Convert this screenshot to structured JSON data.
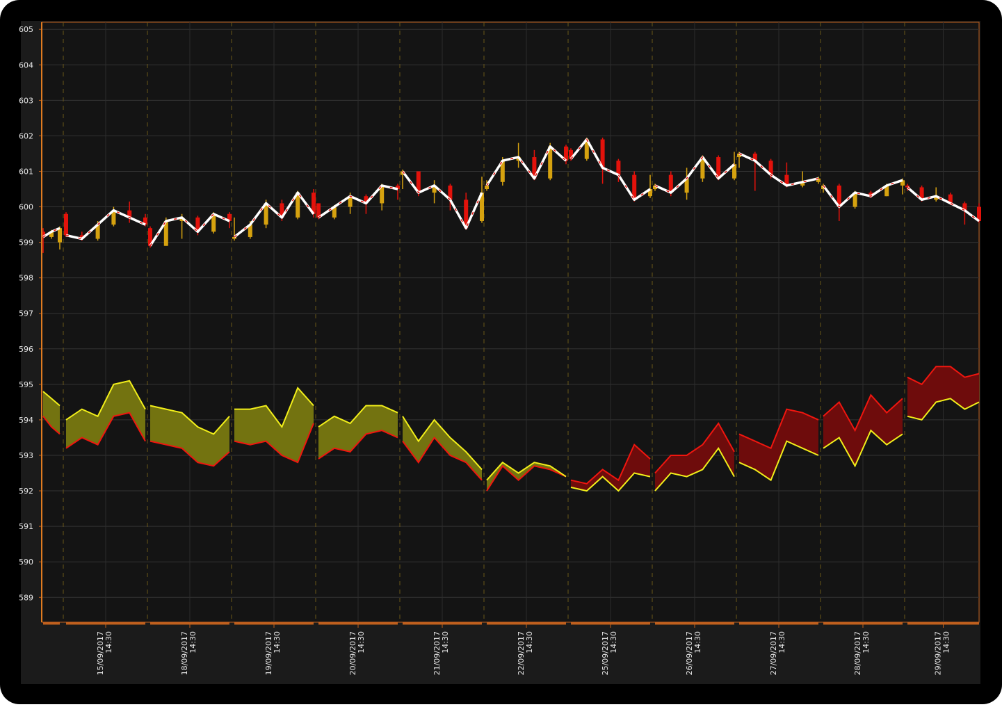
{
  "chart_data": {
    "type": "candlestick",
    "ylim": [
      588.3,
      605.2
    ],
    "yticks": [
      589,
      590,
      591,
      592,
      593,
      594,
      595,
      596,
      597,
      598,
      599,
      600,
      601,
      602,
      603,
      604,
      605
    ],
    "grid": true,
    "colors": {
      "up": "#d6a20f",
      "down": "#e3120b",
      "close_line": "#ffffff",
      "close_dash": "#e3120b",
      "band_line_1": "#f2ef1a",
      "band_line_2": "#f0160f",
      "band_fill_1_above": "#737310",
      "band_fill_2_above": "#6e0c0c"
    },
    "sessions": [
      {
        "label": null,
        "open": [
          599.3,
          599.15,
          599.0
        ],
        "high": [
          599.4,
          599.35,
          599.45
        ],
        "low": [
          598.7,
          599.1,
          598.8
        ],
        "close": [
          599.15,
          599.3,
          599.4
        ],
        "band_1": [
          594.8,
          594.6,
          594.4
        ],
        "band_2": [
          594.1,
          593.8,
          593.6
        ]
      },
      {
        "label": [
          "15/09/2017",
          "14:30"
        ],
        "open": [
          599.8,
          599.2,
          599.1,
          599.5,
          599.9,
          599.7
        ],
        "high": [
          599.85,
          599.3,
          599.6,
          600.0,
          600.15,
          599.8
        ],
        "low": [
          599.15,
          599.05,
          599.05,
          599.45,
          599.55,
          599.45
        ],
        "close": [
          599.2,
          599.1,
          599.5,
          599.9,
          599.7,
          599.5
        ],
        "band_1": [
          594.0,
          594.3,
          594.1,
          595.0,
          595.1,
          594.3
        ],
        "band_2": [
          593.2,
          593.5,
          593.3,
          594.1,
          594.2,
          593.4
        ]
      },
      {
        "label": [
          "18/09/2017",
          "14:30"
        ],
        "open": [
          599.4,
          598.9,
          599.6,
          599.7,
          599.3,
          599.8
        ],
        "high": [
          599.45,
          599.7,
          599.8,
          599.75,
          599.85,
          599.85
        ],
        "low": [
          598.85,
          598.9,
          599.1,
          599.2,
          599.25,
          599.4
        ],
        "close": [
          598.9,
          599.6,
          599.7,
          599.3,
          599.8,
          599.6
        ],
        "band_1": [
          594.4,
          594.3,
          594.2,
          593.8,
          593.6,
          594.1
        ],
        "band_2": [
          593.4,
          593.3,
          593.2,
          592.8,
          592.7,
          593.1
        ]
      },
      {
        "label": [
          "19/09/2017",
          "14:30"
        ],
        "open": [
          599.1,
          599.15,
          599.5,
          600.1,
          599.7,
          600.4
        ],
        "high": [
          599.7,
          599.6,
          600.2,
          600.2,
          600.45,
          600.5
        ],
        "low": [
          599.05,
          599.1,
          599.4,
          599.6,
          599.65,
          599.7
        ],
        "close": [
          599.15,
          599.5,
          600.1,
          599.7,
          600.4,
          599.8
        ],
        "band_1": [
          594.3,
          594.3,
          594.4,
          593.8,
          594.9,
          594.4
        ],
        "band_2": [
          593.4,
          593.3,
          593.4,
          593.0,
          592.8,
          593.9
        ]
      },
      {
        "label": [
          "20/09/2017",
          "14:30"
        ],
        "open": [
          600.1,
          599.7,
          600.0,
          600.3,
          600.1,
          600.6
        ],
        "high": [
          600.1,
          600.05,
          600.4,
          600.35,
          600.65,
          600.65
        ],
        "low": [
          599.65,
          599.65,
          599.8,
          599.8,
          599.9,
          600.2
        ],
        "close": [
          599.7,
          600.0,
          600.3,
          600.1,
          600.6,
          600.5
        ],
        "band_1": [
          593.8,
          594.1,
          593.9,
          594.4,
          594.4,
          594.2
        ],
        "band_2": [
          592.9,
          593.2,
          593.1,
          593.6,
          593.7,
          593.5
        ]
      },
      {
        "label": [
          "21/09/2017",
          "14:30"
        ],
        "open": [
          600.9,
          601.0,
          600.4,
          600.6,
          600.2,
          599.6
        ],
        "high": [
          601.05,
          601.0,
          600.75,
          600.65,
          600.4,
          600.85
        ],
        "low": [
          600.5,
          600.3,
          600.1,
          599.9,
          599.35,
          599.55
        ],
        "close": [
          601.0,
          600.4,
          600.6,
          600.2,
          599.4,
          600.4
        ],
        "band_1": [
          594.1,
          593.4,
          594.0,
          593.5,
          593.1,
          592.6
        ],
        "band_2": [
          593.4,
          592.8,
          593.5,
          593.0,
          592.8,
          592.3
        ]
      },
      {
        "label": [
          "22/09/2017",
          "14:30"
        ],
        "open": [
          600.5,
          600.7,
          601.3,
          601.4,
          600.8,
          601.7
        ],
        "high": [
          600.75,
          601.4,
          601.8,
          601.6,
          601.8,
          601.75
        ],
        "low": [
          600.45,
          600.6,
          601.1,
          600.75,
          600.75,
          601.2
        ],
        "close": [
          600.6,
          601.3,
          601.4,
          600.8,
          601.7,
          601.3
        ],
        "band_1": [
          592.3,
          592.8,
          592.5,
          592.8,
          592.7,
          592.4
        ],
        "band_2": [
          592.0,
          592.7,
          592.3,
          592.7,
          592.6,
          592.4
        ]
      },
      {
        "label": [
          "25/09/2017",
          "14:30"
        ],
        "open": [
          601.6,
          601.35,
          601.9,
          601.3,
          600.9,
          600.3
        ],
        "high": [
          601.65,
          601.95,
          601.95,
          601.35,
          601.0,
          600.9
        ],
        "low": [
          601.3,
          601.3,
          600.65,
          600.7,
          600.15,
          600.25
        ],
        "close": [
          601.35,
          601.9,
          601.1,
          600.9,
          600.2,
          600.5
        ],
        "band_1": [
          592.1,
          592.0,
          592.4,
          592.0,
          592.5,
          592.4
        ],
        "band_2": [
          592.3,
          592.2,
          592.6,
          592.3,
          593.3,
          592.9
        ]
      },
      {
        "label": [
          "26/09/2017",
          "14:30"
        ],
        "open": [
          600.5,
          600.9,
          600.4,
          600.8,
          601.4,
          600.8
        ],
        "high": [
          600.65,
          601.0,
          601.1,
          601.45,
          601.45,
          601.55
        ],
        "low": [
          600.45,
          600.3,
          600.2,
          600.7,
          600.75,
          600.75
        ],
        "close": [
          600.6,
          600.4,
          600.8,
          601.4,
          600.8,
          601.2
        ],
        "band_1": [
          592.0,
          592.5,
          592.4,
          592.6,
          593.2,
          592.4
        ],
        "band_2": [
          592.5,
          593.0,
          593.0,
          593.3,
          593.9,
          593.1
        ]
      },
      {
        "label": [
          "27/09/2017",
          "14:30"
        ],
        "open": [
          601.4,
          601.5,
          601.3,
          600.9,
          600.6,
          600.7
        ],
        "high": [
          601.55,
          601.55,
          601.35,
          601.25,
          601.0,
          600.85
        ],
        "low": [
          601.1,
          600.45,
          600.8,
          600.55,
          600.55,
          600.65
        ],
        "close": [
          601.5,
          601.3,
          600.9,
          600.6,
          600.7,
          600.8
        ],
        "band_1": [
          592.8,
          592.6,
          592.3,
          593.4,
          593.2,
          593.0
        ],
        "band_2": [
          593.6,
          593.4,
          593.2,
          594.3,
          594.2,
          594.0
        ]
      },
      {
        "label": [
          "28/09/2017",
          "14:30"
        ],
        "open": [
          600.5,
          600.6,
          600.0,
          600.4,
          600.3,
          600.6
        ],
        "high": [
          600.65,
          600.65,
          600.45,
          600.45,
          600.65,
          600.8
        ],
        "low": [
          600.4,
          599.6,
          599.95,
          600.25,
          600.3,
          600.35
        ],
        "close": [
          600.6,
          600.0,
          600.4,
          600.3,
          600.6,
          600.75
        ],
        "band_1": [
          593.2,
          593.5,
          592.7,
          593.7,
          593.3,
          593.6
        ],
        "band_2": [
          594.1,
          594.5,
          593.7,
          594.7,
          594.2,
          594.6
        ]
      },
      {
        "label": [
          "29/09/2017",
          "14:30"
        ],
        "open": [
          600.6,
          600.55,
          600.2,
          600.35,
          600.1,
          600.0
        ],
        "high": [
          600.65,
          600.6,
          600.55,
          600.4,
          600.15,
          600.1
        ],
        "low": [
          600.45,
          600.15,
          600.15,
          600.05,
          599.5,
          599.55
        ],
        "close": [
          600.55,
          600.2,
          600.3,
          600.1,
          599.9,
          599.6
        ],
        "band_1": [
          594.1,
          594.0,
          594.5,
          594.6,
          594.3,
          594.5
        ],
        "band_2": [
          595.2,
          595.0,
          595.5,
          595.5,
          595.2,
          595.3
        ]
      }
    ]
  }
}
